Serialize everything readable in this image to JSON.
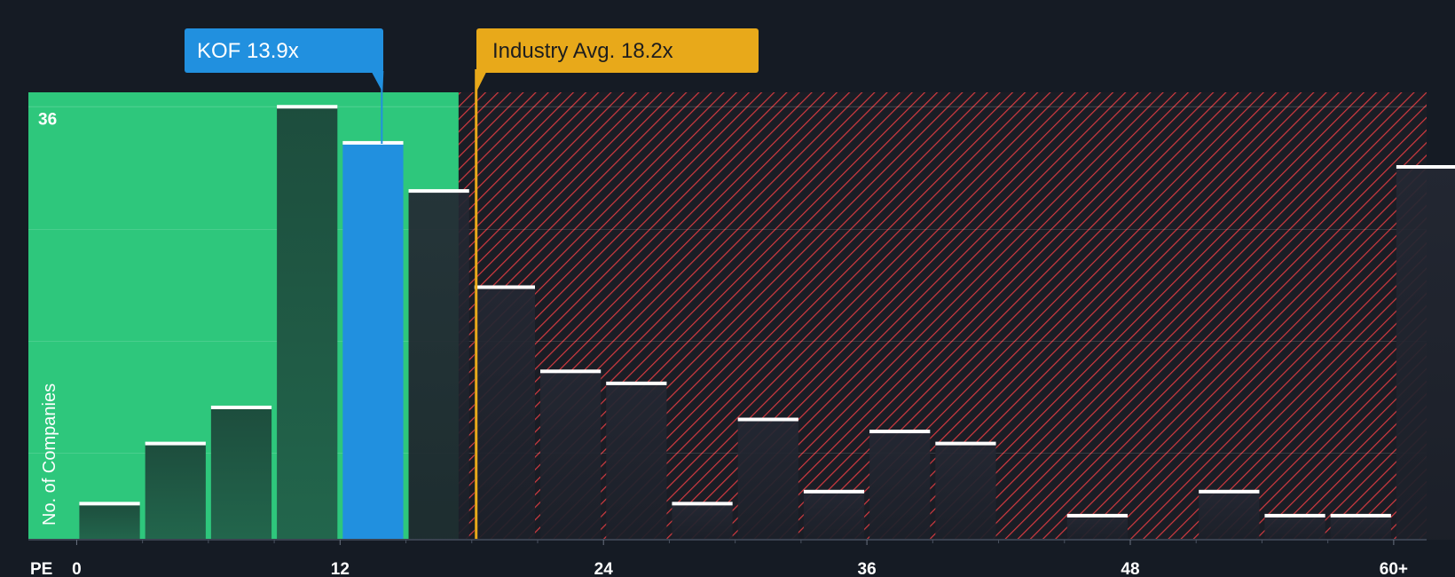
{
  "chart_data": {
    "type": "bar",
    "title": "",
    "xlabel": "PE",
    "ylabel": "No. of Companies",
    "x_ticks": [
      "0",
      "12",
      "24",
      "36",
      "48",
      "60+"
    ],
    "x_tick_values": [
      0,
      12,
      24,
      36,
      48,
      60
    ],
    "y_tick_labels": [
      "36"
    ],
    "y_tick_values": [
      36
    ],
    "ylim": [
      0,
      37.2
    ],
    "xlim": [
      -2.2,
      61.5
    ],
    "bin_width": 3,
    "bins": [
      {
        "start": 0,
        "value": 3,
        "highlight": false
      },
      {
        "start": 3,
        "value": 8,
        "highlight": false
      },
      {
        "start": 6,
        "value": 11,
        "highlight": false
      },
      {
        "start": 9,
        "value": 36,
        "highlight": false
      },
      {
        "start": 12,
        "value": 33,
        "highlight": true
      },
      {
        "start": 15,
        "value": 29,
        "highlight": false
      },
      {
        "start": 18,
        "value": 21,
        "highlight": false
      },
      {
        "start": 21,
        "value": 14,
        "highlight": false
      },
      {
        "start": 24,
        "value": 13,
        "highlight": false
      },
      {
        "start": 27,
        "value": 3,
        "highlight": false
      },
      {
        "start": 30,
        "value": 10,
        "highlight": false
      },
      {
        "start": 33,
        "value": 4,
        "highlight": false
      },
      {
        "start": 36,
        "value": 9,
        "highlight": false
      },
      {
        "start": 39,
        "value": 8,
        "highlight": false
      },
      {
        "start": 42,
        "value": 0,
        "highlight": false
      },
      {
        "start": 45,
        "value": 2,
        "highlight": false
      },
      {
        "start": 48,
        "value": 0,
        "highlight": false
      },
      {
        "start": 51,
        "value": 4,
        "highlight": false
      },
      {
        "start": 54,
        "value": 2,
        "highlight": false
      },
      {
        "start": 57,
        "value": 2,
        "highlight": false
      },
      {
        "start": 60,
        "value": 31,
        "highlight": false
      }
    ],
    "fair_zone_end": 17.4,
    "company": {
      "label": "KOF 13.9x",
      "value": 13.9
    },
    "industry": {
      "label": "Industry Avg. 18.2x",
      "value": 18.2
    }
  },
  "colors": {
    "background": "#151b24",
    "fair_zone": "#2ec77c",
    "bar_fair": "#1f5c47",
    "bar_expensive": "#1e232d",
    "hatch": "#d33a40",
    "highlight_bar": "#2190df",
    "company_callout": "#2190df",
    "industry_callout": "#e8a91a",
    "bar_cap": "#ffffff",
    "text": "#ffffff"
  }
}
